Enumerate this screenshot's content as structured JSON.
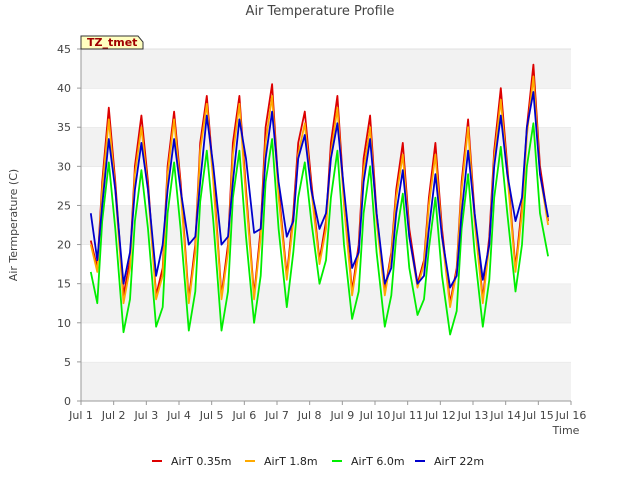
{
  "chart_data": {
    "type": "line",
    "title": "Air Temperature Profile",
    "xlabel": "Time",
    "ylabel": "Air Termperature (C)",
    "ylim": [
      0,
      45
    ],
    "xlim": [
      0,
      15
    ],
    "x_tick_labels": [
      "Jul 1",
      "Jul 2",
      "Jul 3",
      "Jul 4",
      "Jul 5",
      "Jul 6",
      "Jul 7",
      "Jul 8",
      "Jul 9",
      "Jul 10",
      "Jul 11",
      "Jul 12",
      "Jul 13",
      "Jul 14",
      "Jul 15",
      "Jul 16"
    ],
    "y_ticks": [
      0,
      5,
      10,
      15,
      20,
      25,
      30,
      35,
      40,
      45
    ],
    "grid": "horizontal bands",
    "legend_position": "bottom",
    "site_tag": "TZ_tmet",
    "x_days": [
      0.3,
      0.5,
      0.65,
      0.85,
      1.05,
      1.3,
      1.5,
      1.65,
      1.85,
      2.05,
      2.3,
      2.5,
      2.65,
      2.85,
      3.05,
      3.3,
      3.5,
      3.65,
      3.85,
      4.05,
      4.3,
      4.5,
      4.65,
      4.85,
      5.05,
      5.3,
      5.5,
      5.65,
      5.85,
      6.05,
      6.3,
      6.5,
      6.65,
      6.85,
      7.05,
      7.3,
      7.5,
      7.65,
      7.85,
      8.05,
      8.3,
      8.5,
      8.65,
      8.85,
      9.05,
      9.3,
      9.5,
      9.65,
      9.85,
      10.05,
      10.3,
      10.5,
      10.65,
      10.85,
      11.05,
      11.3,
      11.5,
      11.65,
      11.85,
      12.05,
      12.3,
      12.5,
      12.65,
      12.85,
      13.05,
      13.3,
      13.5,
      13.65,
      13.85,
      14.05,
      14.3,
      14.5,
      14.65
    ],
    "series": [
      {
        "name": "AirT 0.35m",
        "color": "#dd0000",
        "values": [
          20.5,
          17,
          28,
          37.5,
          28,
          13.5,
          18,
          30,
          36.5,
          28,
          13.5,
          17,
          30,
          37,
          28,
          13,
          20,
          33,
          39,
          29,
          13.5,
          20,
          33,
          39,
          27,
          13.5,
          22,
          35,
          40.5,
          27,
          16,
          24,
          33,
          37,
          28,
          18,
          23,
          33,
          39,
          26,
          14,
          20,
          31,
          36.5,
          24,
          14,
          19,
          27,
          33,
          22,
          15,
          18,
          26,
          33,
          22,
          12.5,
          17,
          28,
          36,
          24,
          13,
          21,
          32,
          40,
          30,
          17,
          25,
          35,
          43,
          30,
          23
        ]
      },
      {
        "name": "AirT 1.8m",
        "color": "#ffaa00",
        "values": [
          20,
          16.5,
          27,
          36,
          27,
          12.5,
          17,
          29,
          35,
          27,
          13,
          16,
          29,
          36,
          27,
          12.5,
          19,
          32,
          38,
          28,
          13,
          19,
          31.5,
          38,
          26,
          13,
          21,
          33,
          39,
          26,
          15.5,
          23,
          31.5,
          35.5,
          27,
          17.5,
          22,
          31.5,
          37.5,
          25,
          13.5,
          19,
          29.5,
          35,
          23,
          13.5,
          18.5,
          26,
          31.5,
          21,
          14.5,
          17.5,
          25,
          31.5,
          21,
          12,
          16.5,
          27,
          35,
          23,
          12.5,
          20,
          31,
          38.5,
          29,
          16.5,
          24,
          34,
          41.5,
          29,
          22.5
        ]
      },
      {
        "name": "AirT 6.0m",
        "color": "#00ee00",
        "values": [
          16.5,
          12.5,
          23,
          30.5,
          22,
          8.8,
          13,
          23,
          29.5,
          22,
          9.5,
          12,
          24,
          30.5,
          22,
          9,
          14,
          25.5,
          32,
          23,
          9,
          14,
          26,
          32,
          21,
          10,
          16,
          28,
          33.5,
          22,
          12,
          19,
          26,
          30.5,
          23,
          15,
          18,
          26,
          32,
          20,
          10.5,
          14,
          24,
          30,
          19,
          9.5,
          13.5,
          21,
          26.5,
          17,
          11,
          13,
          19.5,
          26,
          16,
          8.5,
          11.5,
          22,
          29,
          19,
          9.5,
          15.5,
          26,
          32.5,
          24,
          14,
          20,
          30,
          35.5,
          24,
          18.5
        ]
      },
      {
        "name": "AirT 22m",
        "color": "#0000cc",
        "values": [
          24,
          18,
          25,
          33.5,
          27,
          15,
          19,
          27,
          33,
          27,
          16,
          20,
          27,
          33.5,
          27,
          20,
          21,
          28,
          36.5,
          30,
          20,
          21,
          28,
          36,
          31,
          21.5,
          22,
          31,
          37,
          28,
          21,
          23,
          31,
          34,
          27,
          22,
          24,
          31,
          35.5,
          27,
          17,
          19,
          28,
          33.5,
          24,
          15,
          17,
          24,
          29.5,
          21,
          15,
          16,
          22,
          29,
          21,
          14.5,
          16,
          24,
          32,
          24,
          15.5,
          20,
          30,
          36.5,
          29,
          23,
          26,
          35,
          39.5,
          29,
          23.5
        ]
      }
    ]
  }
}
